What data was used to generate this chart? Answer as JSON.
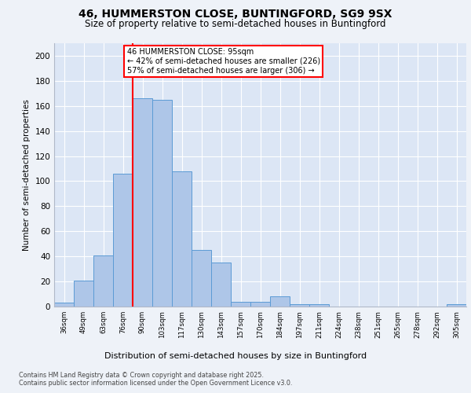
{
  "title_line1": "46, HUMMERSTON CLOSE, BUNTINGFORD, SG9 9SX",
  "title_line2": "Size of property relative to semi-detached houses in Buntingford",
  "xlabel": "Distribution of semi-detached houses by size in Buntingford",
  "ylabel": "Number of semi-detached properties",
  "categories": [
    "36sqm",
    "49sqm",
    "63sqm",
    "76sqm",
    "90sqm",
    "103sqm",
    "117sqm",
    "130sqm",
    "143sqm",
    "157sqm",
    "170sqm",
    "184sqm",
    "197sqm",
    "211sqm",
    "224sqm",
    "238sqm",
    "251sqm",
    "265sqm",
    "278sqm",
    "292sqm",
    "305sqm"
  ],
  "values": [
    3,
    21,
    41,
    106,
    166,
    165,
    108,
    45,
    35,
    4,
    4,
    8,
    2,
    2,
    0,
    0,
    0,
    0,
    0,
    0,
    2
  ],
  "bar_color": "#aec6e8",
  "bar_edge_color": "#5b9bd5",
  "red_line_index": 4,
  "annotation_title": "46 HUMMERSTON CLOSE: 95sqm",
  "annotation_line2": "← 42% of semi-detached houses are smaller (226)",
  "annotation_line3": "57% of semi-detached houses are larger (306) →",
  "ylim": [
    0,
    210
  ],
  "yticks": [
    0,
    20,
    40,
    60,
    80,
    100,
    120,
    140,
    160,
    180,
    200
  ],
  "background_color": "#eef2f8",
  "plot_bg_color": "#dce6f5",
  "footer_line1": "Contains HM Land Registry data © Crown copyright and database right 2025.",
  "footer_line2": "Contains public sector information licensed under the Open Government Licence v3.0."
}
